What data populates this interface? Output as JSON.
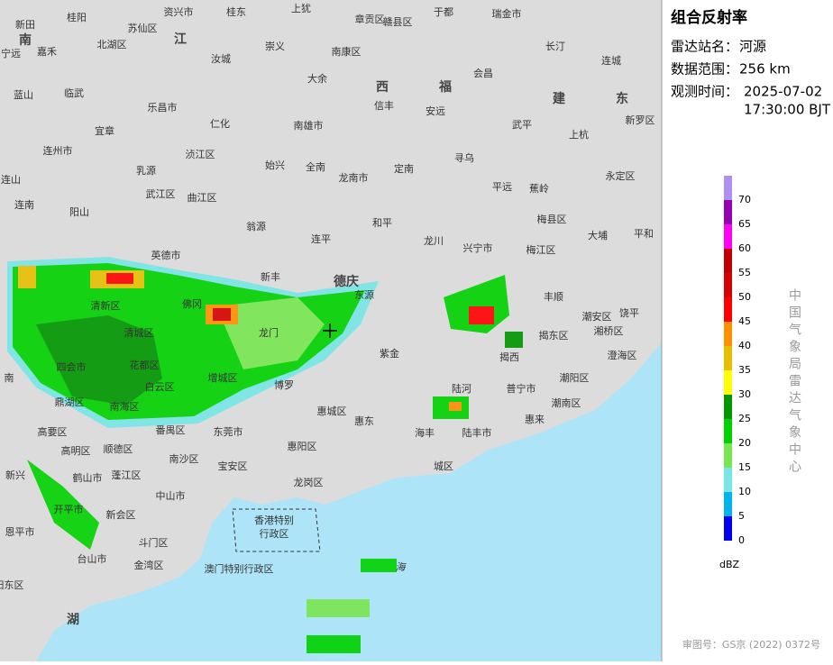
{
  "panel": {
    "title": "组合反射率",
    "station_label": "雷达站名：",
    "station": "河源",
    "range_label": "数据范围：",
    "range": "256 km",
    "time_label": "观测时间：",
    "date": "2025-07-02",
    "time": "17:30:00 BJT",
    "agency": "中国气象局雷达气象中心",
    "unit": "dBZ",
    "legend": [
      {
        "value": 0,
        "color": "#0000f6"
      },
      {
        "value": 5,
        "color": "#00b4f0"
      },
      {
        "value": 10,
        "color": "#78e6e6"
      },
      {
        "value": 15,
        "color": "#78e650"
      },
      {
        "value": 20,
        "color": "#00d200"
      },
      {
        "value": 25,
        "color": "#009600"
      },
      {
        "value": 30,
        "color": "#ffff00"
      },
      {
        "value": 35,
        "color": "#e6c000"
      },
      {
        "value": 40,
        "color": "#ff9000"
      },
      {
        "value": 45,
        "color": "#ff0000"
      },
      {
        "value": 50,
        "color": "#d60000"
      },
      {
        "value": 55,
        "color": "#c00000"
      },
      {
        "value": 60,
        "color": "#ff00f0"
      },
      {
        "value": 65,
        "color": "#9600b4"
      },
      {
        "value": 70,
        "color": "#ad90f0"
      }
    ]
  },
  "map": {
    "labels": [
      "桂阳",
      "资兴市",
      "桂东",
      "上犹",
      "章贡区",
      "赣县区",
      "于都",
      "瑞金市",
      "新田",
      "嘉禾",
      "宁远",
      "苏仙区",
      "北湖区",
      "崇义",
      "南康区",
      "长汀",
      "汝城",
      "大余",
      "会昌",
      "连城",
      "蓝山",
      "临武",
      "乐昌市",
      "信丰",
      "安远",
      "宜章",
      "仁化",
      "南雄市",
      "武平",
      "上杭",
      "新罗区",
      "连州市",
      "浈江区",
      "乳源",
      "始兴",
      "全南",
      "龙南市",
      "定南",
      "寻乌",
      "永定区",
      "平远",
      "蕉岭",
      "连山",
      "武江区",
      "曲江区",
      "和平",
      "梅县区",
      "连南",
      "阳山",
      "翁源",
      "大埔",
      "平和",
      "连平",
      "龙川",
      "兴宁市",
      "梅江区",
      "英德市",
      "新丰",
      "东源",
      "丰顺",
      "清新区",
      "佛冈",
      "揭东区",
      "潮安区",
      "饶平",
      "湘桥区",
      "澄海区",
      "清城区",
      "龙门",
      "紫金",
      "揭西",
      "四会市",
      "花都区",
      "增城区",
      "博罗",
      "陆河",
      "普宁市",
      "潮阳区",
      "潮南区",
      "鼎湖区",
      "白云区",
      "惠城区",
      "惠东",
      "海丰",
      "陆丰市",
      "惠来",
      "南海区",
      "番禺区",
      "东莞市",
      "高要区",
      "高明区",
      "顺德区",
      "惠阳区",
      "南沙区",
      "城区",
      "新兴",
      "鹤山市",
      "蓬江区",
      "宝安区",
      "龙岗区",
      "中山市",
      "新会区",
      "开平市",
      "香港特别",
      "行政区",
      "恩平市",
      "斗门区",
      "金湾区",
      "台山市",
      "澳门特别行政区",
      "阳东区",
      "湖",
      "南",
      "江",
      "西",
      "福",
      "建",
      "东",
      "德庆",
      "南",
      "海"
    ]
  },
  "footer": "审图号：GS京 (2022) 0372号"
}
